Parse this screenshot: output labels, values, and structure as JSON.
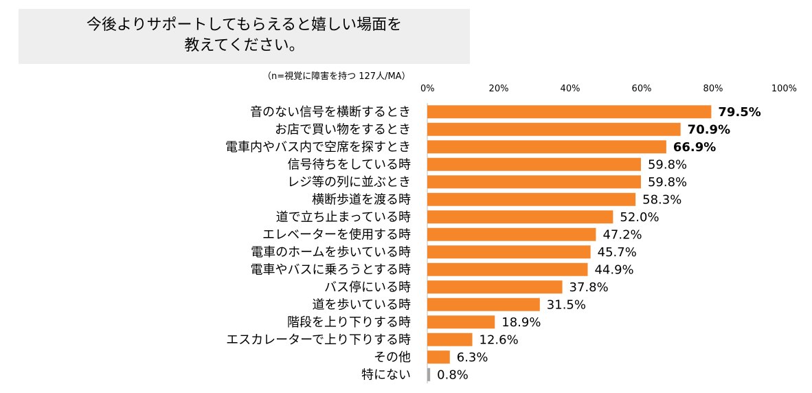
{
  "chart_data": {
    "type": "bar",
    "orientation": "horizontal",
    "title_line1": "今後よりサポートしてもらえると嬉しい場面を",
    "title_line2": "教えてください。",
    "note": "（n=視覚に障害を持つ 127人/MA）",
    "xlim": [
      0,
      100
    ],
    "ticks": [
      "0%",
      "20%",
      "40%",
      "60%",
      "80%",
      "100%"
    ],
    "categories": [
      "音のない信号を横断するとき",
      "お店で買い物をするとき",
      "電車内やバス内で空席を探すとき",
      "信号待ちをしている時",
      "レジ等の列に並ぶとき",
      "横断歩道を渡る時",
      "道で立ち止まっている時",
      "エレベーターを使用する時",
      "電車のホームを歩いている時",
      "電車やバスに乗ろうとする時",
      "バス停にいる時",
      "道を歩いている時",
      "階段を上り下りする時",
      "エスカレーターで上り下りする時",
      "その他",
      "特にない"
    ],
    "values": [
      79.5,
      70.9,
      66.9,
      59.8,
      59.8,
      58.3,
      52.0,
      47.2,
      45.7,
      44.9,
      37.8,
      31.5,
      18.9,
      12.6,
      6.3,
      0.8
    ],
    "value_labels": [
      "79.5%",
      "70.9%",
      "66.9%",
      "59.8%",
      "59.8%",
      "58.3%",
      "52.0%",
      "47.2%",
      "45.7%",
      "44.9%",
      "37.8%",
      "31.5%",
      "18.9%",
      "12.6%",
      "6.3%",
      "0.8%"
    ],
    "bold_top": 3,
    "colors": {
      "bar": "#f5862a",
      "bar_last": "#a6a6a6",
      "axis": "#bfbfbf"
    }
  }
}
